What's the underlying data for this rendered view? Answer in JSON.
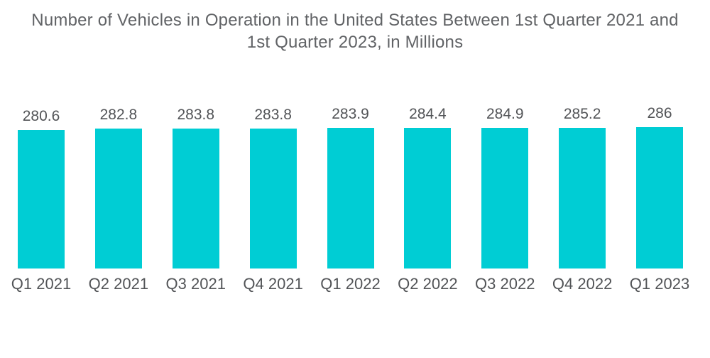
{
  "title": "Number of Vehicles in Operation in the United States Between 1st Quarter 2021 and 1st Quarter 2023, in Millions",
  "colors": {
    "bar": "#00CDD4",
    "title_text": "#616366",
    "label_text": "#525457",
    "background": "#FFFFFF"
  },
  "chart_data": {
    "type": "bar",
    "title": "Number of Vehicles in Operation in the United States Between 1st Quarter 2021 and 1st Quarter 2023, in Millions",
    "categories": [
      "Q1 2021",
      "Q2 2021",
      "Q3 2021",
      "Q4 2021",
      "Q1 2022",
      "Q2 2022",
      "Q3 2022",
      "Q4 2022",
      "Q1 2023"
    ],
    "values": [
      280.6,
      282.8,
      283.8,
      283.8,
      283.9,
      284.4,
      284.9,
      285.2,
      286
    ],
    "value_labels": [
      "280.6",
      "282.8",
      "283.8",
      "283.8",
      "283.9",
      "284.4",
      "284.9",
      "285.2",
      "286"
    ],
    "xlabel": "",
    "ylabel": "",
    "ylim": [
      0,
      286
    ],
    "grid": false,
    "legend": "none",
    "bar_color": "#00CDD4"
  }
}
